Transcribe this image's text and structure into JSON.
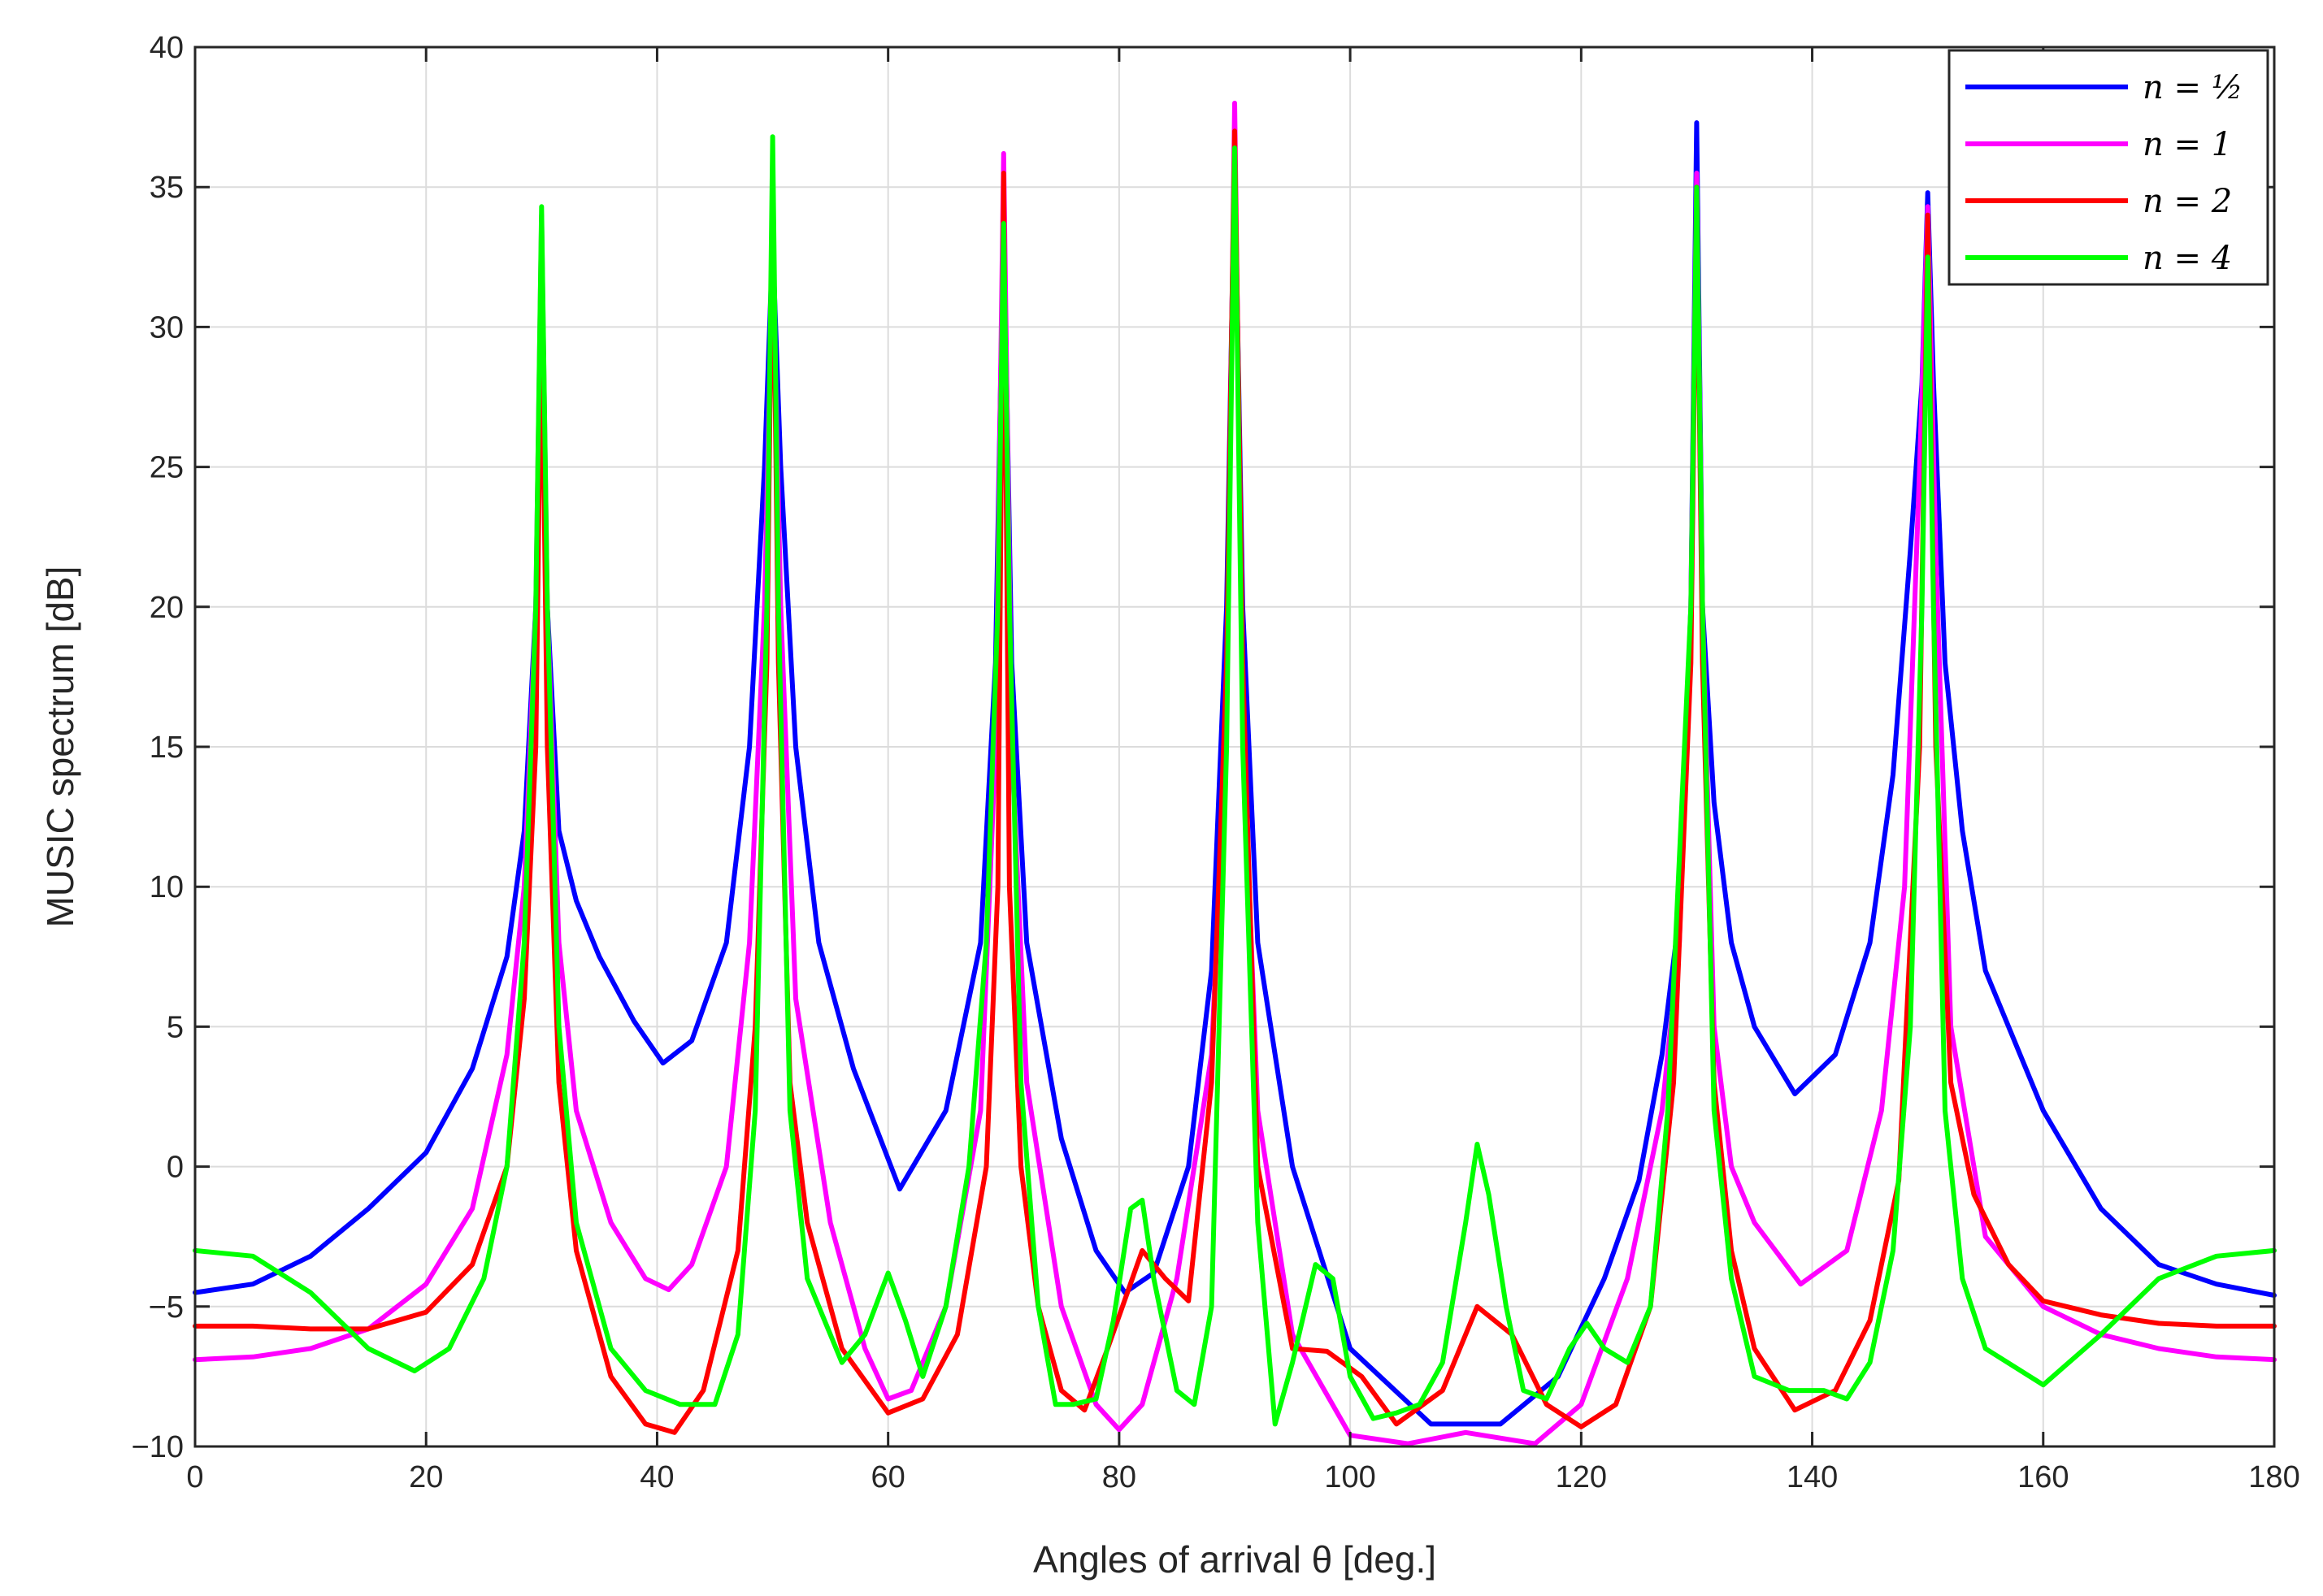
{
  "chart_data": {
    "type": "line",
    "title": "",
    "xlabel": "Angles of arrival θ [deg.]",
    "ylabel": "MUSIC spectrum [dB]",
    "xlim": [
      0,
      180
    ],
    "ylim": [
      -10,
      40
    ],
    "xticks": [
      0,
      20,
      40,
      60,
      80,
      100,
      120,
      140,
      160,
      180
    ],
    "yticks": [
      -10,
      -5,
      0,
      5,
      10,
      15,
      20,
      25,
      30,
      35,
      40
    ],
    "xtick_labels": [
      "0",
      "20",
      "40",
      "60",
      "80",
      "100",
      "120",
      "140",
      "160",
      "180"
    ],
    "ytick_labels": [
      "−10",
      "−5",
      "0",
      "5",
      "10",
      "15",
      "20",
      "25",
      "30",
      "35",
      "40"
    ],
    "grid": true,
    "legend_position": "top-right",
    "series": [
      {
        "name": "n = 1/2",
        "legend_label": "n = ½",
        "color": "#0000ff",
        "x": [
          0,
          5,
          10,
          15,
          20,
          24,
          27,
          28.5,
          29.5,
          30,
          30.5,
          31.5,
          33,
          35,
          38,
          40.5,
          43,
          46,
          48,
          49.3,
          50,
          50.7,
          52,
          54,
          57,
          61,
          65,
          68,
          69.3,
          70,
          70.7,
          72,
          75,
          78,
          80.5,
          83,
          86,
          88,
          89.3,
          90,
          90.7,
          92,
          95,
          100,
          107,
          113,
          118,
          122,
          125,
          127,
          128.5,
          129.5,
          130,
          130.5,
          131.5,
          133,
          135,
          138.5,
          142,
          145,
          147,
          148.5,
          149.5,
          150,
          150.5,
          151.5,
          153,
          155,
          160,
          165,
          170,
          175,
          180
        ],
        "y": [
          -4.5,
          -4.2,
          -3.2,
          -1.5,
          0.5,
          3.5,
          7.5,
          12,
          20,
          30,
          20,
          12,
          9.5,
          7.5,
          5.2,
          3.7,
          4.5,
          8,
          15,
          25,
          33,
          25,
          15,
          8,
          3.5,
          -0.8,
          2,
          8,
          18,
          34,
          18,
          8,
          1,
          -3,
          -4.5,
          -3.8,
          0,
          7,
          20,
          36,
          20,
          8,
          0,
          -6.5,
          -9.2,
          -9.2,
          -7.5,
          -4,
          -0.5,
          4,
          9,
          20,
          37.3,
          20,
          13,
          8,
          5,
          2.6,
          4,
          8,
          14,
          22,
          28,
          34.8,
          28,
          18,
          12,
          7,
          2,
          -1.5,
          -3.5,
          -4.2,
          -4.6
        ]
      },
      {
        "name": "n = 1",
        "legend_label": "n = 1",
        "color": "#ff00ff",
        "x": [
          0,
          5,
          10,
          15,
          20,
          24,
          27,
          28.5,
          29.5,
          30,
          30.5,
          31.5,
          33,
          36,
          39,
          41,
          43,
          46,
          48,
          49.3,
          50,
          50.7,
          52,
          55,
          58,
          60,
          62,
          65,
          68,
          69.3,
          70,
          70.7,
          72,
          75,
          78,
          80,
          82,
          85,
          88,
          89.3,
          90,
          90.7,
          92,
          95,
          100,
          105,
          110,
          116,
          120,
          124,
          127,
          128.5,
          129.5,
          130,
          130.5,
          131.5,
          133,
          135,
          139,
          143,
          146,
          148,
          149.3,
          150,
          150.7,
          152,
          155,
          160,
          165,
          170,
          175,
          180
        ],
        "y": [
          -6.9,
          -6.8,
          -6.5,
          -5.8,
          -4.2,
          -1.5,
          4,
          10,
          20,
          34,
          20,
          8,
          2,
          -2,
          -4,
          -4.4,
          -3.5,
          0,
          8,
          20,
          33,
          20,
          6,
          -2,
          -6.5,
          -8.3,
          -8,
          -5,
          2,
          15,
          36.2,
          15,
          3,
          -5,
          -8.5,
          -9.4,
          -8.5,
          -4,
          4,
          16,
          38,
          16,
          2,
          -6,
          -9.6,
          -9.9,
          -9.5,
          -9.9,
          -8.5,
          -4,
          2,
          8,
          20,
          35.5,
          20,
          5,
          0,
          -2,
          -4.2,
          -3,
          2,
          10,
          25,
          34.3,
          22,
          5,
          -2.5,
          -5,
          -6,
          -6.5,
          -6.8,
          -6.9
        ]
      },
      {
        "name": "n = 2",
        "legend_label": "n = 2",
        "color": "#ff0000",
        "x": [
          0,
          5,
          10,
          15,
          20,
          24,
          27,
          28.5,
          29.5,
          30,
          30.5,
          31.5,
          33,
          36,
          39,
          41.5,
          44,
          47,
          48.5,
          49.5,
          50,
          50.5,
          51.5,
          53,
          56,
          60,
          63,
          66,
          68.5,
          69.5,
          70,
          70.5,
          71.5,
          73,
          75,
          77,
          79,
          82,
          84,
          86,
          88,
          89.3,
          90,
          90.7,
          92,
          95,
          98,
          101,
          104,
          108,
          111,
          114,
          117,
          120,
          123,
          126,
          128,
          129.5,
          130,
          130.5,
          131.5,
          133,
          135,
          138.5,
          142,
          145,
          147.5,
          149.3,
          150,
          150.7,
          152,
          154,
          157,
          160,
          165,
          170,
          175,
          180
        ],
        "y": [
          -5.7,
          -5.7,
          -5.8,
          -5.8,
          -5.2,
          -3.5,
          0,
          6,
          15,
          31,
          15,
          3,
          -3,
          -7.5,
          -9.2,
          -9.5,
          -8,
          -3,
          5,
          18,
          35,
          18,
          3,
          -2,
          -6.5,
          -8.8,
          -8.3,
          -6,
          0,
          10,
          35.5,
          10,
          0,
          -5,
          -8,
          -8.7,
          -6.5,
          -3,
          -4,
          -4.8,
          3,
          18,
          37,
          18,
          0,
          -6.5,
          -6.6,
          -7.5,
          -9.2,
          -8,
          -5,
          -6,
          -8.5,
          -9.3,
          -8.5,
          -5,
          3,
          18,
          35,
          18,
          3,
          -3,
          -6.5,
          -8.7,
          -8,
          -5.5,
          -0.5,
          15,
          34,
          15,
          3,
          -1,
          -3.5,
          -4.8,
          -5.3,
          -5.6,
          -5.7,
          -5.7
        ]
      },
      {
        "name": "n = 4",
        "legend_label": "n = 4",
        "color": "#00ff00",
        "x": [
          0,
          5,
          10,
          15,
          19,
          22,
          25,
          27,
          28.5,
          29.5,
          30,
          30.5,
          31.5,
          33,
          36,
          39,
          42,
          45,
          47,
          48.5,
          49.5,
          50,
          50.5,
          51.5,
          53,
          56,
          58,
          60,
          61.5,
          63,
          65,
          67,
          68.5,
          69.5,
          70,
          70.5,
          71.5,
          73,
          74.5,
          76,
          78,
          79.5,
          81,
          82,
          83,
          85,
          86.5,
          88,
          89.3,
          90,
          90.7,
          92,
          93.5,
          95,
          97,
          98.5,
          100,
          102,
          104,
          106,
          108,
          110,
          111,
          112,
          113.5,
          115,
          117,
          119,
          120.5,
          122,
          124,
          126,
          127.5,
          129.5,
          130,
          130.5,
          131.5,
          133,
          135,
          138,
          141,
          143,
          145,
          147,
          148.5,
          149.5,
          150,
          150.5,
          151.5,
          153,
          155,
          160,
          165,
          170,
          175,
          180
        ],
        "y": [
          -3,
          -3.2,
          -4.5,
          -6.5,
          -7.3,
          -6.5,
          -4,
          0,
          8,
          20,
          34.3,
          20,
          5,
          -2,
          -6.5,
          -8,
          -8.5,
          -8.5,
          -6,
          2,
          20,
          36.8,
          20,
          2,
          -4,
          -7,
          -6,
          -3.8,
          -5.5,
          -7.5,
          -5,
          0,
          8,
          20,
          33.7,
          20,
          3,
          -5,
          -8.5,
          -8.5,
          -8.3,
          -5.5,
          -1.5,
          -1.2,
          -4,
          -8,
          -8.5,
          -5,
          15,
          36.4,
          15,
          -2,
          -9.2,
          -7,
          -3.5,
          -4,
          -7.5,
          -9,
          -8.8,
          -8.5,
          -7,
          -2,
          0.8,
          -1,
          -5,
          -8,
          -8.3,
          -6.5,
          -5.6,
          -6.5,
          -7,
          -5,
          2,
          20,
          35,
          20,
          2,
          -4,
          -7.5,
          -8,
          -8,
          -8.3,
          -7,
          -3,
          5,
          20,
          32.5,
          20,
          2,
          -4,
          -6.5,
          -7.8,
          -6,
          -4,
          -3.2,
          -3
        ]
      }
    ]
  }
}
